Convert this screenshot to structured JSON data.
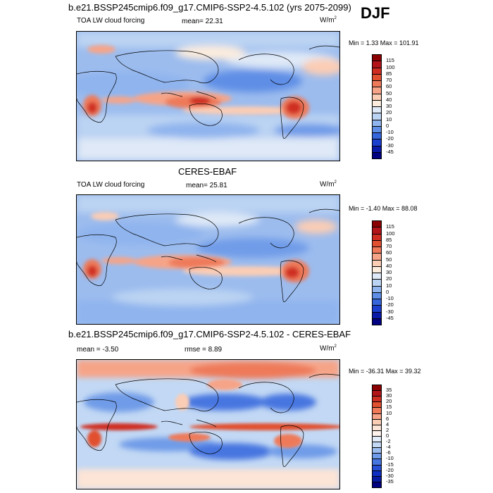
{
  "panels": [
    {
      "title": "b.e21.BSSP245cmip6.f09_g17.CMIP6-SSP2-4.5.102 (yrs 2075-2099)",
      "season": "DJF",
      "variable": "TOA LW cloud forcing",
      "stat1": "mean=  22.31",
      "stat2": "",
      "units": "W/m",
      "units_sup": "2",
      "minmax": "Min =   1.33 Max = 101.91",
      "colorbar_labels": [
        "115",
        "100",
        "85",
        "70",
        "60",
        "50",
        "40",
        "30",
        "20",
        "10",
        "0",
        "-10",
        "-20",
        "-30",
        "-45"
      ],
      "colorbar_colors": [
        "#8b0000",
        "#b2141a",
        "#cf2d22",
        "#e1502f",
        "#ee7a5a",
        "#f6a488",
        "#fbcdb5",
        "#fcecdd",
        "#dfe9f7",
        "#bcd4f3",
        "#8fb4ee",
        "#5e8ee6",
        "#3566dc",
        "#1b3fcf",
        "#0a1aa8",
        "#000080"
      ]
    },
    {
      "title": "CERES-EBAF",
      "variable": "TOA LW cloud forcing",
      "stat1": "mean=  25.81",
      "stat2": "",
      "units": "W/m",
      "units_sup": "2",
      "minmax": "Min =  -1.40 Max =  88.08",
      "colorbar_labels": [
        "115",
        "100",
        "85",
        "70",
        "60",
        "50",
        "40",
        "30",
        "20",
        "10",
        "0",
        "-10",
        "-20",
        "-30",
        "-45"
      ],
      "colorbar_colors": [
        "#8b0000",
        "#b2141a",
        "#cf2d22",
        "#e1502f",
        "#ee7a5a",
        "#f6a488",
        "#fbcdb5",
        "#fcecdd",
        "#dfe9f7",
        "#bcd4f3",
        "#8fb4ee",
        "#5e8ee6",
        "#3566dc",
        "#1b3fcf",
        "#0a1aa8",
        "#000080"
      ]
    },
    {
      "title": "b.e21.BSSP245cmip6.f09_g17.CMIP6-SSP2-4.5.102 - CERES-EBAF",
      "variable": "",
      "stat1": "mean =  -3.50",
      "stat2": "rmse =   8.89",
      "units": "W/m",
      "units_sup": "2",
      "minmax": "Min = -36.31 Max =  39.32",
      "colorbar_labels": [
        "35",
        "30",
        "20",
        "15",
        "10",
        "6",
        "4",
        "2",
        "0",
        "-2",
        "-4",
        "-6",
        "-10",
        "-15",
        "-20",
        "-30",
        "-35"
      ],
      "colorbar_colors": [
        "#8b0000",
        "#b2141a",
        "#cf2d22",
        "#e1502f",
        "#ee7a5a",
        "#f6a488",
        "#fbcdb5",
        "#fce4d6",
        "#fff3ec",
        "#e3ecf9",
        "#c2d8f4",
        "#9cbcee",
        "#6f9be8",
        "#4676e0",
        "#2550d6",
        "#0f2ec2",
        "#071aa3",
        "#000080"
      ]
    }
  ]
}
